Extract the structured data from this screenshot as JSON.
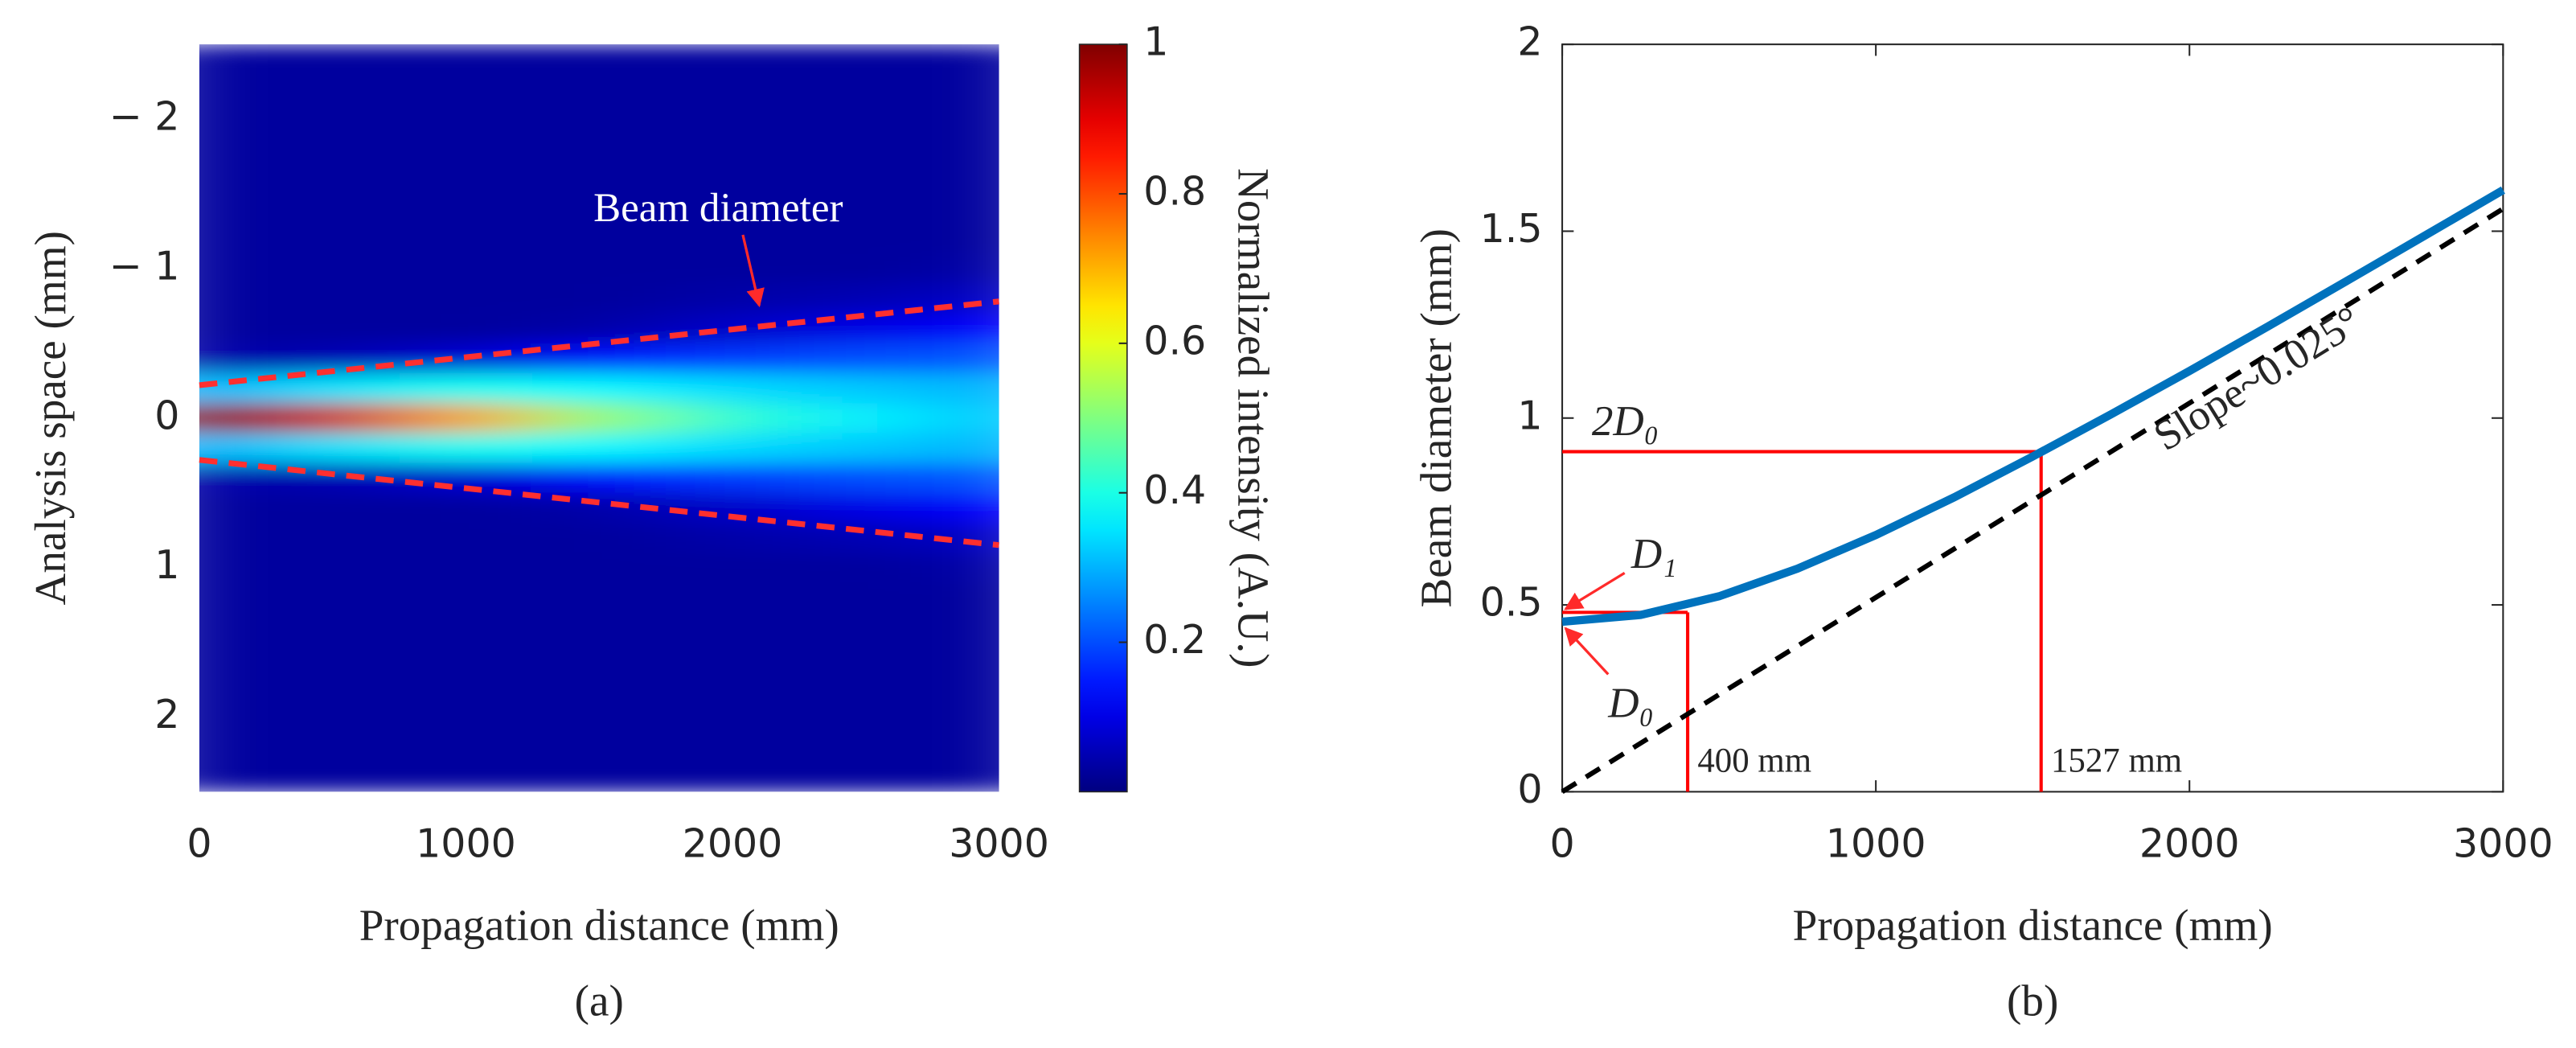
{
  "chart_data": [
    {
      "type": "heatmap",
      "xlabel": "Propagation distance (mm)",
      "ylabel": "Analysis space (mm)",
      "caption": "(a)",
      "x": [
        0,
        500,
        1000,
        1500,
        2000,
        2500,
        3000
      ],
      "y": [
        -2.4,
        -2.2,
        -2.0,
        -1.8,
        -1.6,
        -1.4,
        -1.2,
        -1.0,
        -0.8,
        -0.6,
        -0.4,
        -0.2,
        0,
        0.2,
        0.4,
        0.6,
        0.8,
        1.0,
        1.2,
        1.4,
        1.6,
        1.8,
        2.0,
        2.2,
        2.4
      ],
      "z": [
        [
          0.03,
          0.03,
          0.03,
          0.03,
          0.03,
          0.03,
          0.03
        ],
        [
          0.03,
          0.03,
          0.03,
          0.03,
          0.03,
          0.03,
          0.03
        ],
        [
          0.03,
          0.03,
          0.03,
          0.03,
          0.03,
          0.03,
          0.03
        ],
        [
          0.03,
          0.03,
          0.03,
          0.03,
          0.03,
          0.03,
          0.03
        ],
        [
          0.03,
          0.03,
          0.03,
          0.03,
          0.03,
          0.03,
          0.03
        ],
        [
          0.03,
          0.03,
          0.03,
          0.03,
          0.03,
          0.03,
          0.03
        ],
        [
          0.03,
          0.03,
          0.03,
          0.03,
          0.03,
          0.03,
          0.03
        ],
        [
          0.03,
          0.03,
          0.03,
          0.03,
          0.03,
          0.03,
          0.04
        ],
        [
          0.03,
          0.03,
          0.03,
          0.03,
          0.04,
          0.05,
          0.07
        ],
        [
          0.03,
          0.03,
          0.03,
          0.04,
          0.07,
          0.1,
          0.13
        ],
        [
          0.04,
          0.05,
          0.08,
          0.14,
          0.18,
          0.2,
          0.21
        ],
        [
          0.3,
          0.35,
          0.39,
          0.37,
          0.34,
          0.32,
          0.3
        ],
        [
          1,
          0.92,
          0.72,
          0.52,
          0.42,
          0.36,
          0.32
        ],
        [
          0.3,
          0.35,
          0.39,
          0.37,
          0.34,
          0.32,
          0.3
        ],
        [
          0.04,
          0.05,
          0.08,
          0.14,
          0.18,
          0.2,
          0.21
        ],
        [
          0.03,
          0.03,
          0.03,
          0.04,
          0.07,
          0.1,
          0.13
        ],
        [
          0.03,
          0.03,
          0.03,
          0.03,
          0.04,
          0.05,
          0.07
        ],
        [
          0.03,
          0.03,
          0.03,
          0.03,
          0.03,
          0.03,
          0.04
        ],
        [
          0.03,
          0.03,
          0.03,
          0.03,
          0.03,
          0.03,
          0.03
        ],
        [
          0.03,
          0.03,
          0.03,
          0.03,
          0.03,
          0.03,
          0.03
        ],
        [
          0.03,
          0.03,
          0.03,
          0.03,
          0.03,
          0.03,
          0.03
        ],
        [
          0.03,
          0.03,
          0.03,
          0.03,
          0.03,
          0.03,
          0.03
        ],
        [
          0.03,
          0.03,
          0.03,
          0.03,
          0.03,
          0.03,
          0.03
        ],
        [
          0.03,
          0.03,
          0.03,
          0.03,
          0.03,
          0.03,
          0.03
        ],
        [
          0.03,
          0.03,
          0.03,
          0.03,
          0.03,
          0.03,
          0.03
        ]
      ],
      "colormap": "jet",
      "clim": [
        0,
        1
      ],
      "colorbar_label": "Normalized intensity (A.U.)",
      "colorbar_ticks": [
        0.2,
        0.4,
        0.6,
        0.8,
        1
      ],
      "xlim": [
        0,
        3000
      ],
      "xticks": [
        0,
        1000,
        2000,
        3000
      ],
      "ylim": [
        2.5,
        -2.5
      ],
      "yticks": [
        {
          "value": -2,
          "label": "− 2"
        },
        {
          "value": -1,
          "label": "− 1"
        },
        0,
        1,
        2
      ],
      "overlay_lines": [
        {
          "color": "#ff2f2f",
          "dash": true,
          "x": [
            0,
            3000
          ],
          "y": [
            -0.22,
            -0.78
          ]
        },
        {
          "color": "#ff2f2f",
          "dash": true,
          "x": [
            0,
            3000
          ],
          "y": [
            0.28,
            0.85
          ]
        }
      ],
      "annotation": "Beam diameter"
    },
    {
      "type": "line",
      "xlabel": "Propagation distance (mm)",
      "ylabel": "Beam diameter (mm)",
      "caption": "(b)",
      "xlim": [
        0,
        3000
      ],
      "xticks": [
        0,
        1000,
        2000,
        3000
      ],
      "ylim": [
        0,
        2
      ],
      "yticks": [
        0,
        0.5,
        1,
        1.5,
        2
      ],
      "series": [
        {
          "color": "#0072bd",
          "x": [
            0,
            250,
            500,
            750,
            1000,
            1250,
            1500,
            1750,
            2000,
            2250,
            2500,
            2750,
            3000
          ],
          "values": [
            0.455,
            0.473,
            0.523,
            0.597,
            0.687,
            0.788,
            0.897,
            1.01,
            1.126,
            1.245,
            1.366,
            1.488,
            1.61
          ]
        },
        {
          "color": "#000000",
          "dash": true,
          "x": [
            0,
            3000
          ],
          "values": [
            0,
            1.56
          ]
        }
      ],
      "reference_color": "#ff0000",
      "reference_lines": [
        {
          "x": 1527,
          "y": 0.91,
          "label": "1527 mm",
          "point_label": "2D₀"
        },
        {
          "x": 400,
          "y": 0.48,
          "label": "400 mm",
          "point_label": "D₁"
        }
      ],
      "start_label": "D₀",
      "slope_label": "Slope~0.025°"
    }
  ]
}
